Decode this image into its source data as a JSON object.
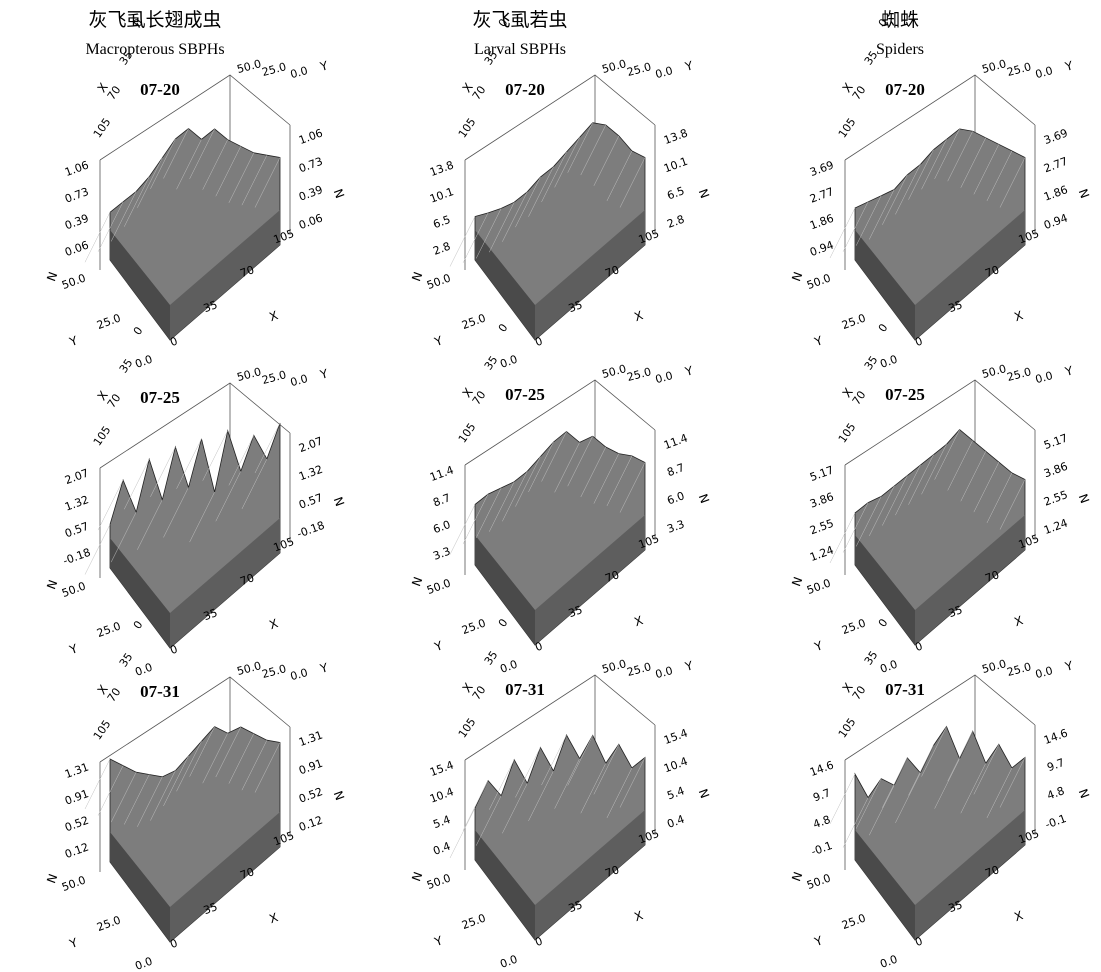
{
  "columns": [
    {
      "cn": "灰飞虱长翅成虫",
      "en": "Macropterous SBPHs"
    },
    {
      "cn": "灰飞虱若虫",
      "en": "Larval SBPHs"
    },
    {
      "cn": "蜘蛛",
      "en": "Spiders"
    }
  ],
  "chart_data": [
    {
      "type": "surface",
      "title": "07-20",
      "zlabel": "N",
      "xlabel": "X",
      "ylabel": "Y",
      "x_ticks": [
        "0",
        "35",
        "70",
        "105"
      ],
      "y_ticks": [
        "0.0",
        "25.0",
        "50.0"
      ],
      "z_ticks": [
        "0.06",
        "0.39",
        "0.73",
        "1.06"
      ],
      "zlim": [
        0.06,
        1.06
      ],
      "profile": [
        0.15,
        0.25,
        0.35,
        0.5,
        0.7,
        0.9,
        1.0,
        0.85,
        0.95,
        0.8,
        0.7,
        0.6,
        0.55,
        0.5
      ]
    },
    {
      "type": "surface",
      "title": "07-20",
      "zlabel": "N",
      "xlabel": "X",
      "ylabel": "Y",
      "x_ticks": [
        "0",
        "35",
        "70",
        "105"
      ],
      "y_ticks": [
        "0.0",
        "25.0",
        "50.0"
      ],
      "z_ticks": [
        "2.8",
        "6.5",
        "10.1",
        "13.8"
      ],
      "zlim": [
        2.8,
        13.8
      ],
      "profile": [
        0.1,
        0.12,
        0.15,
        0.2,
        0.3,
        0.45,
        0.55,
        0.7,
        0.85,
        1.0,
        0.95,
        0.8,
        0.6,
        0.5
      ]
    },
    {
      "type": "surface",
      "title": "07-20",
      "zlabel": "N",
      "xlabel": "X",
      "ylabel": "Y",
      "x_ticks": [
        "0",
        "35",
        "70",
        "105"
      ],
      "y_ticks": [
        "0.0",
        "25.0",
        "50.0"
      ],
      "z_ticks": [
        "0.94",
        "1.86",
        "2.77",
        "3.69"
      ],
      "zlim": [
        0.94,
        3.69
      ],
      "profile": [
        0.2,
        0.25,
        0.3,
        0.35,
        0.5,
        0.6,
        0.75,
        0.85,
        0.95,
        0.9,
        0.8,
        0.7,
        0.6,
        0.5
      ]
    },
    {
      "type": "surface",
      "title": "07-25",
      "zlabel": "N",
      "xlabel": "X",
      "ylabel": "Y",
      "x_ticks": [
        "0",
        "35",
        "70",
        "105"
      ],
      "y_ticks": [
        "0.0",
        "25.0",
        "50.0"
      ],
      "z_ticks": [
        "-0.18",
        "0.57",
        "1.32",
        "2.07"
      ],
      "zlim": [
        -0.18,
        2.07
      ],
      "profile": [
        0.1,
        0.6,
        0.2,
        0.8,
        0.3,
        0.9,
        0.4,
        0.95,
        0.3,
        1.0,
        0.5,
        0.9,
        0.6,
        1.0
      ]
    },
    {
      "type": "surface",
      "title": "07-25",
      "zlabel": "N",
      "xlabel": "X",
      "ylabel": "Y",
      "x_ticks": [
        "0",
        "35",
        "70",
        "105"
      ],
      "y_ticks": [
        "0.0",
        "25.0",
        "50.0"
      ],
      "z_ticks": [
        "3.3",
        "6.0",
        "8.7",
        "11.4"
      ],
      "zlim": [
        3.3,
        11.4
      ],
      "profile": [
        0.3,
        0.4,
        0.45,
        0.5,
        0.6,
        0.75,
        0.9,
        1.0,
        0.85,
        0.9,
        0.75,
        0.65,
        0.6,
        0.5
      ]
    },
    {
      "type": "surface",
      "title": "07-25",
      "zlabel": "N",
      "xlabel": "X",
      "ylabel": "Y",
      "x_ticks": [
        "0",
        "35",
        "70",
        "105"
      ],
      "y_ticks": [
        "0.0",
        "25.0",
        "50.0"
      ],
      "z_ticks": [
        "1.24",
        "2.55",
        "3.86",
        "5.17"
      ],
      "zlim": [
        1.24,
        5.17
      ],
      "profile": [
        0.2,
        0.3,
        0.35,
        0.45,
        0.55,
        0.65,
        0.75,
        0.85,
        1.0,
        0.85,
        0.7,
        0.55,
        0.4,
        0.3
      ]
    },
    {
      "type": "surface",
      "title": "07-31",
      "zlabel": "N",
      "xlabel": "X",
      "ylabel": "Y",
      "x_ticks": [
        "0",
        "35",
        "70",
        "105"
      ],
      "y_ticks": [
        "0.0",
        "25.0",
        "50.0"
      ],
      "z_ticks": [
        "0.12",
        "0.52",
        "0.91",
        "1.31"
      ],
      "zlim": [
        0.12,
        1.31
      ],
      "profile": [
        0.8,
        0.7,
        0.6,
        0.55,
        0.5,
        0.55,
        0.7,
        0.85,
        1.0,
        0.9,
        0.95,
        0.85,
        0.75,
        0.7
      ]
    },
    {
      "type": "surface",
      "title": "07-31",
      "zlabel": "N",
      "xlabel": "X",
      "ylabel": "Y",
      "x_ticks": [
        "0",
        "35",
        "70",
        "105"
      ],
      "y_ticks": [
        "0.0",
        "25.0",
        "50.0"
      ],
      "z_ticks": [
        "0.4",
        "5.4",
        "10.4",
        "15.4"
      ],
      "zlim": [
        0.4,
        15.4
      ],
      "profile": [
        0.2,
        0.5,
        0.3,
        0.7,
        0.4,
        0.8,
        0.5,
        0.9,
        0.6,
        0.85,
        0.5,
        0.7,
        0.4,
        0.5
      ]
    },
    {
      "type": "surface",
      "title": "07-31",
      "zlabel": "N",
      "xlabel": "X",
      "ylabel": "Y",
      "x_ticks": [
        "0",
        "35",
        "70",
        "105"
      ],
      "y_ticks": [
        "0.0",
        "25.0",
        "50.0"
      ],
      "z_ticks": [
        "-0.1",
        "4.8",
        "9.7",
        "14.6"
      ],
      "zlim": [
        -0.1,
        14.6
      ],
      "profile": [
        0.6,
        0.3,
        0.5,
        0.4,
        0.7,
        0.5,
        0.8,
        1.0,
        0.6,
        0.9,
        0.5,
        0.7,
        0.4,
        0.5
      ]
    }
  ]
}
